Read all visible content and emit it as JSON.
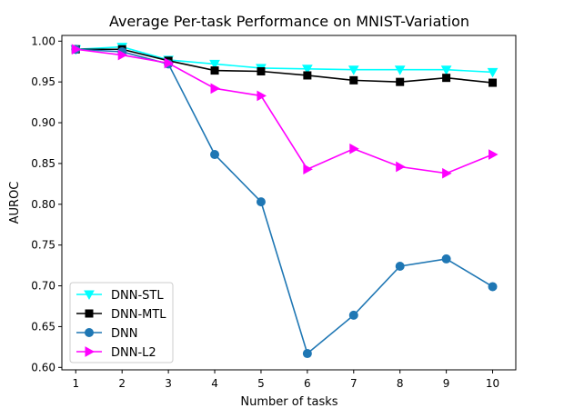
{
  "chart_data": {
    "type": "line",
    "title": "Average Per-task Performance on MNIST-Variation",
    "xlabel": "Number of tasks",
    "ylabel": "AUROC",
    "x": [
      1,
      2,
      3,
      4,
      5,
      6,
      7,
      8,
      9,
      10
    ],
    "xticks": [
      "1",
      "2",
      "3",
      "4",
      "5",
      "6",
      "7",
      "8",
      "9",
      "10"
    ],
    "xlim": [
      0.7,
      10.5
    ],
    "ylim": [
      0.597,
      1.007
    ],
    "yticks": [
      "0.60",
      "0.65",
      "0.70",
      "0.75",
      "0.80",
      "0.85",
      "0.90",
      "0.95",
      "1.00"
    ],
    "grid": false,
    "legend_position": "lower-left",
    "series": [
      {
        "name": "DNN-STL",
        "color": "#00ffff",
        "marker": "triangle-down",
        "values": [
          0.99,
          0.993,
          0.977,
          0.972,
          0.967,
          0.966,
          0.965,
          0.965,
          0.965,
          0.962
        ]
      },
      {
        "name": "DNN-MTL",
        "color": "#000000",
        "marker": "square",
        "values": [
          0.99,
          0.99,
          0.976,
          0.964,
          0.963,
          0.958,
          0.952,
          0.95,
          0.955,
          0.949
        ]
      },
      {
        "name": "DNN",
        "color": "#1f77b4",
        "marker": "circle",
        "values": [
          0.99,
          0.987,
          0.972,
          0.861,
          0.803,
          0.617,
          0.664,
          0.724,
          0.733,
          0.699
        ]
      },
      {
        "name": "DNN-L2",
        "color": "#ff00ff",
        "marker": "triangle-right",
        "values": [
          0.99,
          0.983,
          0.973,
          0.942,
          0.933,
          0.843,
          0.868,
          0.846,
          0.838,
          0.861
        ]
      }
    ]
  }
}
